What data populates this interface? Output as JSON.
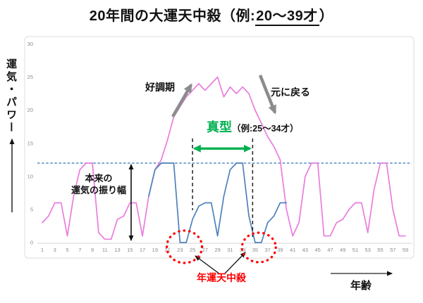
{
  "title": {
    "prefix": "20年間の大運天中殺（例:",
    "underlined": "20～39才",
    "suffix": "）"
  },
  "annotations": {
    "good_period": "好調期",
    "return_to_normal": "元に戻る",
    "true_type": "真型",
    "true_type_example": "（例:25～34才）",
    "normal_range_line1": "本来の",
    "normal_range_line2": "運気の振り幅",
    "annual_tenchusatsu": "年運天中殺",
    "age_label": "年齢",
    "y_axis_label": "運気・パワー"
  },
  "colors": {
    "pink_line": "#EA7CDE",
    "blue_line": "#4F81BD",
    "threshold": "#2E75B6",
    "green": "#00B050",
    "red": "#FF0000",
    "gray_arrow": "#8C8C8C",
    "axis_text": "#8A8A8A",
    "black": "#111111"
  },
  "chart_data": {
    "type": "line",
    "title": "20年間の大運天中殺（例:20～39才）",
    "xlabel": "年齢",
    "ylabel": "運気・パワー",
    "x_range": [
      1,
      59
    ],
    "ylim": [
      0,
      30
    ],
    "grid": false,
    "legend": false,
    "y_ticks": [
      0,
      5,
      10,
      15,
      20,
      25,
      30
    ],
    "x_ticks": [
      1,
      3,
      5,
      7,
      9,
      11,
      13,
      15,
      17,
      19,
      21,
      23,
      25,
      27,
      29,
      31,
      33,
      35,
      37,
      39,
      41,
      43,
      45,
      47,
      49,
      51,
      53,
      55,
      57,
      59
    ],
    "threshold_line": {
      "value": 12,
      "style": "dashed"
    },
    "series": [
      {
        "name": "pink-line",
        "color": "pink",
        "x_start": 1,
        "values": [
          3,
          4,
          6,
          6,
          1,
          7,
          11,
          12,
          12,
          1.5,
          0.5,
          0.5,
          3.5,
          4,
          6,
          6,
          1,
          7,
          11,
          12.5,
          15.5,
          19,
          20.5,
          22,
          23,
          24,
          23,
          24,
          25,
          22,
          23.5,
          22.5,
          23.5,
          22.5,
          20,
          18,
          16,
          14.5,
          12.5,
          5,
          1,
          3,
          10,
          12,
          12,
          1,
          1,
          3,
          3.5,
          5,
          6,
          6,
          1.5,
          8,
          12,
          12,
          5,
          1,
          1
        ]
      },
      {
        "name": "blue-line",
        "color": "blue",
        "x_start": 18,
        "values": [
          7,
          11,
          12,
          12,
          12,
          0,
          0,
          3.5,
          5.5,
          6,
          6,
          1,
          7,
          11,
          12,
          12,
          4,
          0,
          0,
          3,
          4,
          6,
          6
        ]
      }
    ],
    "range_markers": {
      "dashed_vertical_ages": [
        25,
        34.6
      ],
      "arrow_span_ages": [
        25.3,
        34.2
      ],
      "arrow_value": 14.2
    },
    "red_circle_centers_age": [
      23.7,
      35.6
    ]
  }
}
